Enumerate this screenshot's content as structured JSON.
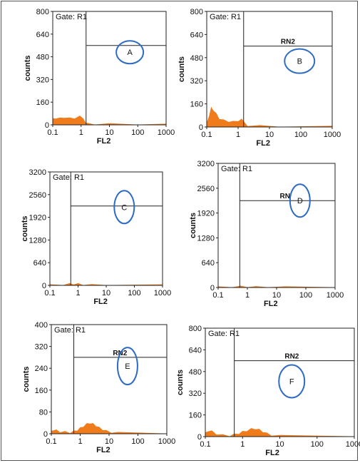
{
  "chart_data": [
    {
      "id": "A",
      "type": "histogram",
      "gate_label": "Gate: R1",
      "region_label": "",
      "panel_letter": "A",
      "xlabel": "FL2",
      "ylabel": "counts",
      "x_ticks": [
        "0.1",
        "1",
        "10",
        "100",
        "1000"
      ],
      "y_ticks": [
        "0",
        "160",
        "320",
        "480",
        "640",
        "800"
      ],
      "x_scale": "log",
      "xlim": [
        0.1,
        1000
      ],
      "ylim": [
        0,
        800
      ],
      "marker_x": 1.5,
      "marker_y": 560,
      "histogram": {
        "x": [
          0.1,
          0.13,
          0.18,
          0.25,
          0.4,
          0.6,
          0.9,
          1.2,
          1.4,
          3,
          10,
          100,
          1000
        ],
        "y": [
          40,
          50,
          45,
          55,
          45,
          50,
          58,
          50,
          10,
          6,
          4,
          2,
          1
        ]
      }
    },
    {
      "id": "B",
      "type": "histogram",
      "gate_label": "Gate: R1",
      "region_label": "RN2",
      "panel_letter": "B",
      "xlabel": "FL2",
      "ylabel": "counts",
      "x_ticks": [
        "0.1",
        "1",
        "10",
        "100",
        "1000"
      ],
      "y_ticks": [
        "0",
        "160",
        "320",
        "480",
        "640",
        "800"
      ],
      "x_scale": "log",
      "xlim": [
        0.1,
        1000
      ],
      "ylim": [
        0,
        800
      ],
      "marker_x": 1.5,
      "marker_y": 560,
      "histogram": {
        "x": [
          0.1,
          0.12,
          0.14,
          0.16,
          0.2,
          0.25,
          0.35,
          0.5,
          0.7,
          1.0,
          1.3,
          2,
          5,
          20,
          1000
        ],
        "y": [
          20,
          80,
          130,
          120,
          90,
          60,
          45,
          40,
          35,
          45,
          50,
          12,
          6,
          3,
          1
        ]
      }
    },
    {
      "id": "C",
      "type": "histogram",
      "gate_label": "Gate: R1",
      "region_label": "",
      "panel_letter": "C",
      "xlabel": "FL2",
      "ylabel": "counts",
      "x_ticks": [
        "0.1",
        "1",
        "10",
        "100",
        "1000"
      ],
      "y_ticks": [
        "0",
        "640",
        "1280",
        "1920",
        "2560",
        "3200"
      ],
      "x_scale": "log",
      "xlim": [
        0.1,
        1000
      ],
      "ylim": [
        0,
        3200
      ],
      "marker_x": 0.55,
      "marker_y": 2240,
      "histogram": {
        "x": [
          0.1,
          0.3,
          0.5,
          0.7,
          1.0,
          1.5,
          3,
          10,
          1000
        ],
        "y": [
          3,
          15,
          35,
          45,
          35,
          18,
          6,
          2,
          1
        ]
      }
    },
    {
      "id": "D",
      "type": "histogram",
      "gate_label": "Gate: R1",
      "region_label": "RN",
      "panel_letter": "D",
      "xlabel": "FL2",
      "ylabel": "counts",
      "x_ticks": [
        "0.1",
        "1",
        "10",
        "100",
        "1000"
      ],
      "y_ticks": [
        "0",
        "640",
        "1280",
        "1920",
        "2560",
        "3200"
      ],
      "x_scale": "log",
      "xlim": [
        0.1,
        1000
      ],
      "ylim": [
        0,
        3200
      ],
      "marker_x": 0.55,
      "marker_y": 2240,
      "histogram": {
        "x": [
          0.1,
          0.3,
          0.6,
          1.0,
          2,
          5,
          20,
          1000
        ],
        "y": [
          4,
          12,
          20,
          16,
          10,
          6,
          3,
          1
        ]
      }
    },
    {
      "id": "E",
      "type": "histogram",
      "gate_label": "Gate: R1",
      "region_label": "RN2",
      "panel_letter": "E",
      "xlabel": "FL2",
      "ylabel": "counts",
      "x_ticks": [
        "0.1",
        "1",
        "10",
        "100",
        "1000"
      ],
      "y_ticks": [
        "0",
        "80",
        "160",
        "240",
        "320",
        "400"
      ],
      "x_scale": "log",
      "xlim": [
        0.1,
        1000
      ],
      "ylim": [
        0,
        400
      ],
      "marker_x": 0.6,
      "marker_y": 280,
      "histogram": {
        "x": [
          0.1,
          0.12,
          0.15,
          0.2,
          0.3,
          0.45,
          0.6,
          0.8,
          1.0,
          1.3,
          1.7,
          2.2,
          2.8,
          3.5,
          4.5,
          6,
          8,
          12,
          20,
          1000
        ],
        "y": [
          8,
          15,
          12,
          8,
          6,
          5,
          8,
          14,
          20,
          28,
          35,
          40,
          35,
          30,
          22,
          16,
          10,
          6,
          3,
          1
        ]
      }
    },
    {
      "id": "F",
      "type": "histogram",
      "gate_label": "Gate: R1",
      "region_label": "RN2",
      "panel_letter": "F",
      "xlabel": "FL2",
      "ylabel": "counts",
      "x_ticks": [
        "0.1",
        "1",
        "10",
        "100",
        "1000"
      ],
      "y_ticks": [
        "0",
        "160",
        "320",
        "480",
        "640",
        "800"
      ],
      "x_scale": "log",
      "xlim": [
        0.1,
        1000
      ],
      "ylim": [
        0,
        800
      ],
      "marker_x": 0.6,
      "marker_y": 560,
      "histogram": {
        "x": [
          0.1,
          0.12,
          0.15,
          0.2,
          0.3,
          0.45,
          0.6,
          0.8,
          1.0,
          1.3,
          1.7,
          2.2,
          2.8,
          3.5,
          4.5,
          6,
          10,
          1000
        ],
        "y": [
          25,
          45,
          38,
          20,
          10,
          8,
          15,
          25,
          35,
          45,
          55,
          60,
          50,
          38,
          22,
          12,
          4,
          1
        ]
      }
    }
  ],
  "style": {
    "axis_color": "#222222",
    "fill_color": "#f07b1a",
    "circle_color": "#2d6bc4"
  }
}
